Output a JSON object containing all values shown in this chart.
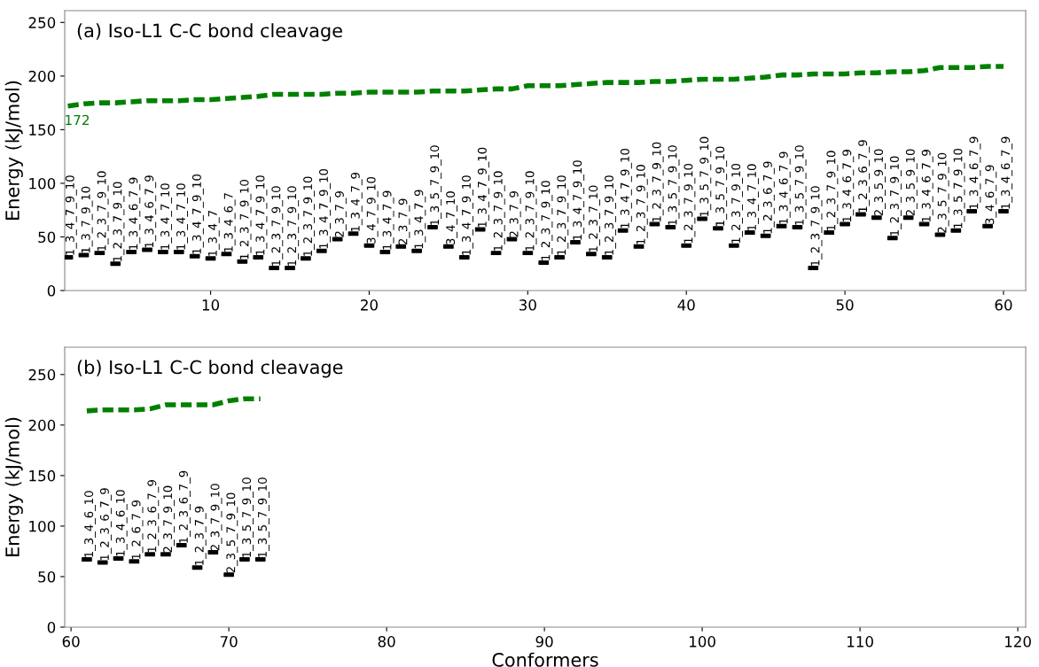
{
  "chart_data": [
    {
      "type": "line",
      "title": "(a) Iso-L1 C-C bond cleavage",
      "ylabel": "Energy (kJ/mol)",
      "x": [
        1,
        2,
        3,
        4,
        5,
        6,
        7,
        8,
        9,
        10,
        11,
        12,
        13,
        14,
        15,
        16,
        17,
        18,
        19,
        20,
        21,
        22,
        23,
        24,
        25,
        26,
        27,
        28,
        29,
        30,
        31,
        32,
        33,
        34,
        35,
        36,
        37,
        38,
        39,
        40,
        41,
        42,
        43,
        44,
        45,
        46,
        47,
        48,
        49,
        50,
        51,
        52,
        53,
        54,
        55,
        56,
        57,
        58,
        59,
        60
      ],
      "xlim": [
        0.8,
        61.4
      ],
      "xticks": [
        10,
        20,
        30,
        40,
        50,
        60
      ],
      "ylim": [
        0,
        261
      ],
      "yticks": [
        0,
        50,
        100,
        150,
        200,
        250
      ],
      "grid": false,
      "legend": false,
      "annotations": [
        {
          "text": "172",
          "x": 1,
          "y": 172
        }
      ],
      "series": [
        {
          "color": "#008000",
          "line_style": "dashed",
          "marker": "none",
          "values": [
            172,
            174,
            175,
            175,
            176,
            177,
            177,
            177,
            178,
            178,
            179,
            180,
            181,
            183,
            183,
            183,
            183,
            184,
            184,
            185,
            185,
            185,
            185,
            186,
            186,
            186,
            187,
            188,
            188,
            191,
            191,
            191,
            192,
            193,
            194,
            194,
            194,
            195,
            195,
            196,
            197,
            197,
            197,
            198,
            199,
            201,
            201,
            202,
            202,
            202,
            203,
            203,
            204,
            204,
            205,
            208,
            208,
            208,
            209,
            209
          ]
        },
        {
          "type": "scatter",
          "color": "#000000",
          "marker": "square",
          "values": [
            31,
            33,
            35,
            25,
            36,
            38,
            36,
            36,
            32,
            30,
            34,
            27,
            31,
            21,
            21,
            30,
            37,
            48,
            53,
            42,
            36,
            41,
            37,
            59,
            41,
            31,
            57,
            35,
            48,
            35,
            26,
            31,
            45,
            34,
            31,
            56,
            41,
            62,
            59,
            42,
            67,
            58,
            42,
            54,
            51,
            60,
            59,
            21,
            54,
            62,
            71,
            68,
            49,
            68,
            62,
            52,
            56,
            74,
            60,
            74
          ],
          "value_labels": [
            "1_3_4_7_9_10",
            "1_3_7_9_10",
            "1_2_3_7_9_10",
            "1_2_3_7_9_10",
            "1_3_4_6_7_9",
            "1_3_4_6_7_9",
            "1_3_4_7_10",
            "1_3_4_7_10",
            "1_3_4_7_9_10",
            "1_3_4_7",
            "1_3_4_6_7",
            "1_2_3_7_9_10",
            "1_3_4_7_9_10",
            "1_2_3_7_9_10",
            "1_2_3_7_9_10",
            "1_2_3_7_9_10",
            "1_3_4_7_9_10",
            "2_3_7_9",
            "1_3_4_7_9",
            "3_4_7_9_10",
            "1_3_4_7_9",
            "2_3_7_9",
            "1_3_4_7_9",
            "1_3_5_7_9_10",
            "3_4_7_10",
            "1_3_4_7_9_10",
            "1_3_4_7_9_10",
            "1_2_3_7_9_10",
            "2_3_7_9",
            "1_2_3_7_9_10",
            "1_2_3_7_9_10",
            "1_2_3_7_9_10",
            "1_3_4_7_9_10",
            "1_2_3_7_10",
            "1_2_3_7_9_10",
            "1_3_4_7_9_10",
            "1_2_3_7_9_10",
            "1_2_3_7_9_10",
            "1_3_5_7_9_10",
            "1_2_3_7_9_10",
            "1_3_5_7_9_10",
            "1_3_5_7_9_10",
            "1_2_3_7_9_10",
            "1_3_4_7_10",
            "1_2_3_6_7_9",
            "1_3_4_6_7_9",
            "1_3_5_7_9_10",
            "1_2_3_7_9_10",
            "1_2_3_7_9_10",
            "1_3_4_6_7_9",
            "1_2_3_6_7_9",
            "2_3_5_9_10",
            "1_2_3_7_9_10",
            "2_3_5_9_10",
            "1_3_4_6_7_9",
            "2_3_5_7_9_10",
            "1_3_5_7_9_10",
            "1_3_4_6_7_9",
            "3_4_6_7_9",
            "1_3_4_6_7_9"
          ]
        }
      ]
    },
    {
      "type": "line",
      "title": "(b) Iso-L1 C-C bond cleavage",
      "ylabel": "Energy (kJ/mol)",
      "xlabel": "Conformers",
      "x": [
        61,
        62,
        63,
        64,
        65,
        66,
        67,
        68,
        69,
        70,
        71,
        72
      ],
      "xlim": [
        59.6,
        120.5
      ],
      "xticks": [
        60,
        70,
        80,
        90,
        100,
        110,
        120
      ],
      "ylim": [
        0,
        277
      ],
      "yticks": [
        0,
        50,
        100,
        150,
        200,
        250
      ],
      "grid": false,
      "legend": false,
      "series": [
        {
          "color": "#008000",
          "line_style": "dashed",
          "marker": "none",
          "values": [
            214,
            215,
            215,
            215,
            216,
            220,
            220,
            220,
            220,
            224,
            226,
            226
          ]
        },
        {
          "type": "scatter",
          "color": "#000000",
          "marker": "square",
          "values": [
            67,
            64,
            68,
            65,
            72,
            72,
            81,
            59,
            74,
            52,
            67,
            67
          ],
          "value_labels": [
            "1_3_4_6_10",
            "1_2_3_6_7_9",
            "1_3_4_6_10",
            "1_2_6_7_9",
            "1_2_3_6_7_9",
            "2_3_7_9_10",
            "1_2_3_6_7_9",
            "1_2_3_7_9",
            "2_3_7_9_10",
            "2_3_5_7_9_10",
            "1_3_5_7_9_10",
            "1_3_5_7_9_10"
          ]
        }
      ]
    }
  ]
}
